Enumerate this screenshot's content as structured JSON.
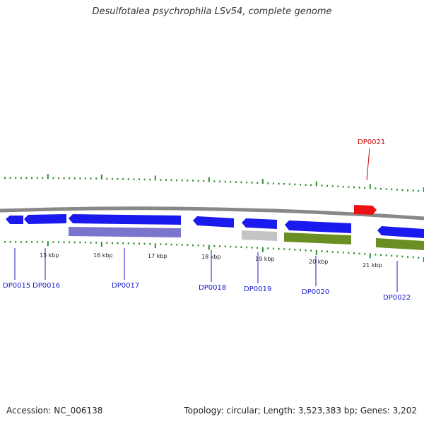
{
  "title": "Desulfotalea psychrophila LSv54, complete genome",
  "footer": {
    "accession": "Accession: NC_006138",
    "summary": "Topology: circular; Length: 3,523,383 bp; Genes: 3,202"
  },
  "kbp_labels": [
    "15 kbp",
    "16 kbp",
    "17 kbp",
    "18 kbp",
    "19 kbp",
    "20 kbp",
    "21 kbp"
  ],
  "genes": [
    "DP0015",
    "DP0016",
    "DP0017",
    "DP0018",
    "DP0019",
    "DP0020",
    "DP0021",
    "DP0022"
  ],
  "colors": {
    "gene_blue": "#1a1aee",
    "gene_red": "#ee1111",
    "track_purple": "#7b74cc",
    "track_grey": "#c4c4c4",
    "track_green": "#6b8e23",
    "backbone": "#888888",
    "tick_green": "#2e8b2e",
    "label_blue": "#1a1acc",
    "label_red": "#cc0000"
  }
}
